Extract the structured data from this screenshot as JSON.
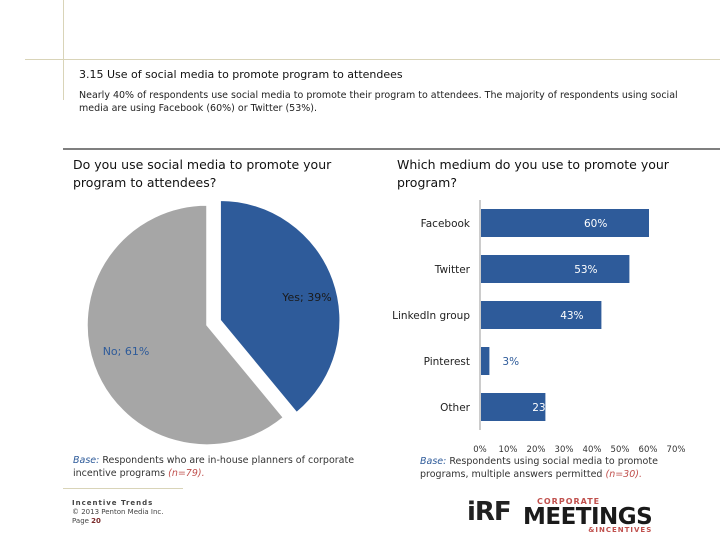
{
  "header": {
    "title": "3.15 Use of social media to promote program to attendees",
    "subtitle": "Nearly 40% of respondents use social media to promote their program to attendees. The majority of respondents using social media are using Facebook (60%) or Twitter (53%)."
  },
  "left_panel": {
    "question": "Do you use social media to promote your program to attendees?",
    "base_label": "Base:",
    "base_text": " Respondents who are in-house planners of corporate incentive programs ",
    "base_n": "(n=79)."
  },
  "right_panel": {
    "question": "Which medium do you use to promote your program?",
    "base_label": "Base:",
    "base_text": " Respondents using social media to promote programs, multiple answers permitted ",
    "base_n": "(n=30)."
  },
  "chart_data": [
    {
      "type": "pie",
      "categories": [
        "Yes",
        "No"
      ],
      "values": [
        39,
        61
      ],
      "labels": [
        "Yes; 39%",
        "No; 61%"
      ],
      "colors": [
        "#2e5b9a",
        "#a6a6a6"
      ]
    },
    {
      "type": "bar",
      "orientation": "horizontal",
      "categories": [
        "Facebook",
        "Twitter",
        "LinkedIn group",
        "Pinterest",
        "Other"
      ],
      "values": [
        60,
        53,
        43,
        3,
        23
      ],
      "labels": [
        "60%",
        "53%",
        "43%",
        "3%",
        "23%"
      ],
      "xlim": [
        0,
        70
      ],
      "xticks": [
        "0%",
        "10%",
        "20%",
        "30%",
        "40%",
        "50%",
        "60%",
        "70%"
      ],
      "bar_color": "#2e5b9a"
    }
  ],
  "footer": {
    "line1": "Incentive Trends",
    "line2": "© 2013 Penton Media Inc.",
    "page_label": "Page ",
    "page_number": "20"
  },
  "logos": {
    "irf": "iRF",
    "corporate": "CORPORATE",
    "meetings": "MEETINGS",
    "incentives": "&INCENTIVES"
  }
}
